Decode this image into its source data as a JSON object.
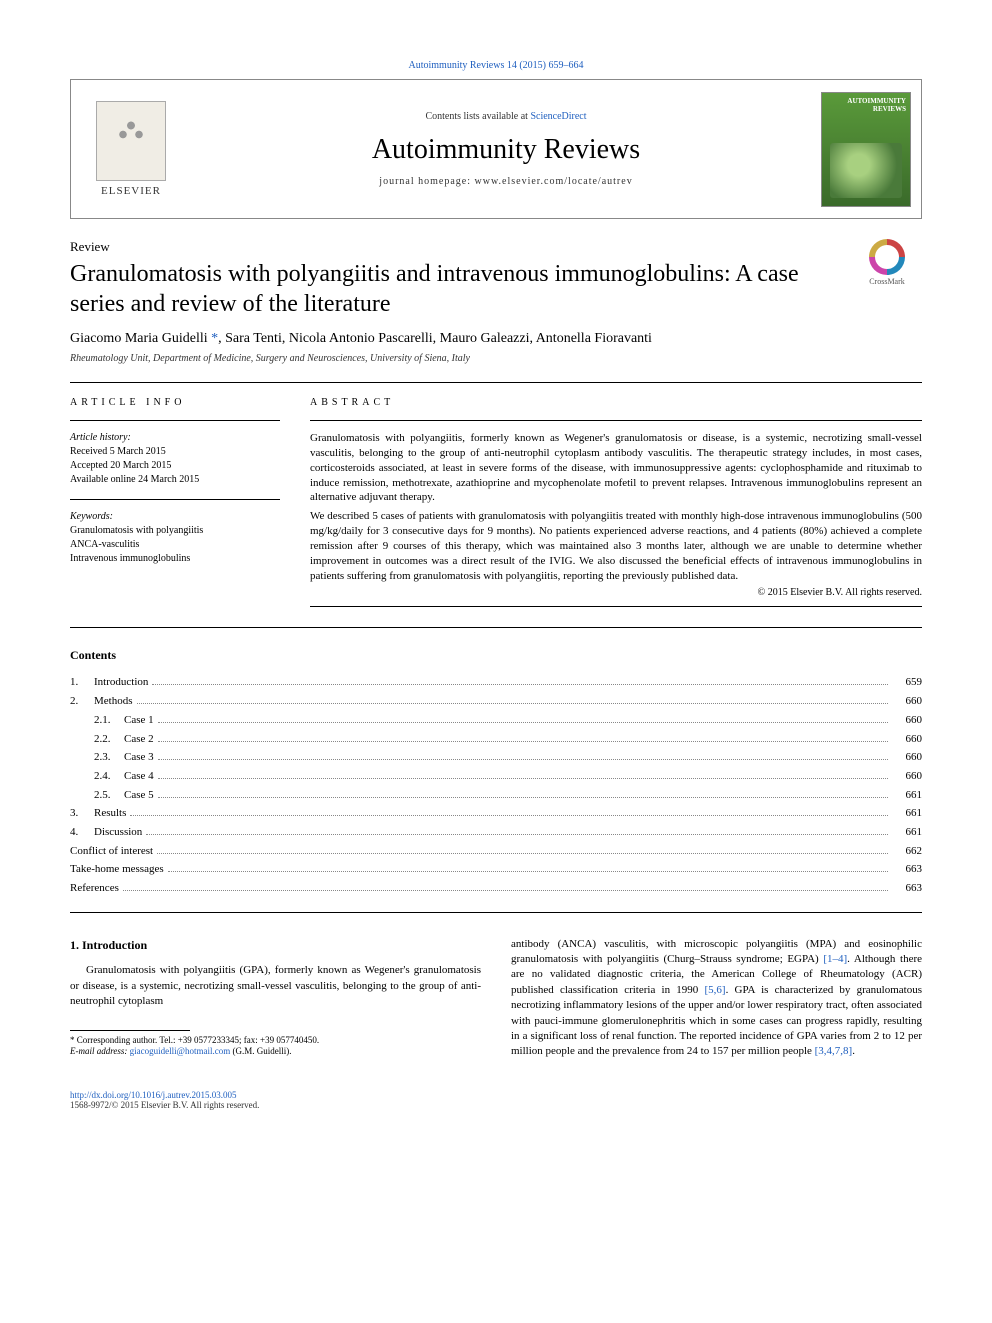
{
  "header": {
    "top_link": "Autoimmunity Reviews 14 (2015) 659–664",
    "contents_available": "Contents lists available at ",
    "sciencedirect": "ScienceDirect",
    "journal_name": "Autoimmunity Reviews",
    "homepage_label": "journal homepage: ",
    "homepage_url": "www.elsevier.com/locate/autrev",
    "elsevier": "ELSEVIER",
    "cover_title": "AUTOIMMUNITY REVIEWS"
  },
  "article": {
    "type": "Review",
    "title": "Granulomatosis with polyangiitis and intravenous immunoglobulins: A case series and review of the literature",
    "crossmark": "CrossMark",
    "authors_html": "Giacomo Maria Guidelli *, Sara Tenti, Nicola Antonio Pascarelli, Mauro Galeazzi, Antonella Fioravanti",
    "affiliation": "Rheumatology Unit, Department of Medicine, Surgery and Neurosciences, University of Siena, Italy"
  },
  "info": {
    "label": "ARTICLE INFO",
    "history_head": "Article history:",
    "received": "Received 5 March 2015",
    "accepted": "Accepted 20 March 2015",
    "online": "Available online 24 March 2015",
    "keywords_head": "Keywords:",
    "kw1": "Granulomatosis with polyangiitis",
    "kw2": "ANCA-vasculitis",
    "kw3": "Intravenous immunoglobulins"
  },
  "abstract": {
    "label": "ABSTRACT",
    "p1": "Granulomatosis with polyangiitis, formerly known as Wegener's granulomatosis or disease, is a systemic, necrotizing small-vessel vasculitis, belonging to the group of anti-neutrophil cytoplasm antibody vasculitis. The therapeutic strategy includes, in most cases, corticosteroids associated, at least in severe forms of the disease, with immunosuppressive agents: cyclophosphamide and rituximab to induce remission, methotrexate, azathioprine and mycophenolate mofetil to prevent relapses. Intravenous immunoglobulins represent an alternative adjuvant therapy.",
    "p2": "We described 5 cases of patients with granulomatosis with polyangiitis treated with monthly high-dose intravenous immunoglobulins (500 mg/kg/daily for 3 consecutive days for 9 months). No patients experienced adverse reactions, and 4 patients (80%) achieved a complete remission after 9 courses of this therapy, which was maintained also 3 months later, although we are unable to determine whether improvement in outcomes was a direct result of the IVIG. We also discussed the beneficial effects of intravenous immunoglobulins in patients suffering from granulomatosis with polyangiitis, reporting the previously published data.",
    "copyright": "© 2015 Elsevier B.V. All rights reserved."
  },
  "contents": {
    "heading": "Contents",
    "items": [
      {
        "num": "1.",
        "label": "Introduction",
        "page": "659",
        "sub": false
      },
      {
        "num": "2.",
        "label": "Methods",
        "page": "660",
        "sub": false
      },
      {
        "num": "2.1.",
        "label": "Case 1",
        "page": "660",
        "sub": true
      },
      {
        "num": "2.2.",
        "label": "Case 2",
        "page": "660",
        "sub": true
      },
      {
        "num": "2.3.",
        "label": "Case 3",
        "page": "660",
        "sub": true
      },
      {
        "num": "2.4.",
        "label": "Case 4",
        "page": "660",
        "sub": true
      },
      {
        "num": "2.5.",
        "label": "Case 5",
        "page": "661",
        "sub": true
      },
      {
        "num": "3.",
        "label": "Results",
        "page": "661",
        "sub": false
      },
      {
        "num": "4.",
        "label": "Discussion",
        "page": "661",
        "sub": false
      },
      {
        "num": "",
        "label": "Conflict of interest",
        "page": "662",
        "sub": false
      },
      {
        "num": "",
        "label": "Take-home messages",
        "page": "663",
        "sub": false
      },
      {
        "num": "",
        "label": "References",
        "page": "663",
        "sub": false
      }
    ]
  },
  "body": {
    "intro_heading": "1. Introduction",
    "left_p1": "Granulomatosis with polyangiitis (GPA), formerly known as Wegener's granulomatosis or disease, is a systemic, necrotizing small-vessel vasculitis, belonging to the group of anti-neutrophil cytoplasm",
    "right_p1_a": "antibody (ANCA) vasculitis, with microscopic polyangiitis (MPA) and eosinophilic granulomatosis with polyangiitis (Churg–Strauss syndrome; EGPA) ",
    "right_ref1": "[1–4]",
    "right_p1_b": ". Although there are no validated diagnostic criteria, the American College of Rheumatology (ACR) published classification criteria in 1990 ",
    "right_ref2": "[5,6]",
    "right_p1_c": ". GPA is characterized by granulomatous necrotizing inflammatory lesions of the upper and/or lower respiratory tract, often associated with pauci-immune glomerulonephritis which in some cases can progress rapidly, resulting in a significant loss of renal function. The reported incidence of GPA varies from 2 to 12 per million people and the prevalence from 24 to 157 per million people ",
    "right_ref3": "[3,4,7,8]",
    "right_p1_d": "."
  },
  "footnote": {
    "corr": "* Corresponding author. Tel.: +39 0577233345; fax: +39 057740450.",
    "email_label": "E-mail address: ",
    "email": "giacoguidelli@hotmail.com",
    "email_suffix": " (G.M. Guidelli)."
  },
  "footer": {
    "doi": "http://dx.doi.org/10.1016/j.autrev.2015.03.005",
    "issn": "1568-9972/© 2015 Elsevier B.V. All rights reserved."
  },
  "colors": {
    "link": "#1f5fbf"
  }
}
